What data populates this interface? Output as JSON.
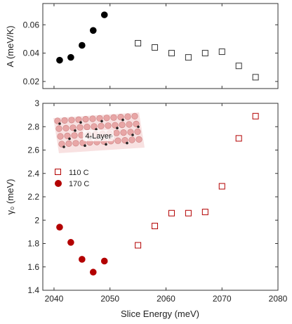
{
  "colors": {
    "black_series": "#000000",
    "open_series": "#333333",
    "red_filled": "#b30000",
    "red_open": "#b30000",
    "inset_atoms": "#e8a6a6"
  },
  "chart_data": [
    {
      "type": "scatter",
      "panel": "top",
      "xlim": [
        2038,
        2080
      ],
      "ylim": [
        0.015,
        0.075
      ],
      "xlabel": "",
      "ylabel": "A (meV/K)",
      "yticks": [
        0.02,
        0.04,
        0.06
      ],
      "ytick_labels": [
        "0.02",
        "0.04",
        "0.06"
      ],
      "xticks": [
        2040,
        2050,
        2060,
        2070,
        2080
      ],
      "series": [
        {
          "marker": "filled-circle",
          "color": "#000000",
          "x": [
            2041,
            2043,
            2045,
            2047,
            2049
          ],
          "y": [
            0.035,
            0.037,
            0.0455,
            0.056,
            0.067
          ]
        },
        {
          "marker": "open-square",
          "color": "#333333",
          "x": [
            2055,
            2058,
            2061,
            2064,
            2067,
            2070,
            2073,
            2076
          ],
          "y": [
            0.047,
            0.044,
            0.04,
            0.037,
            0.04,
            0.041,
            0.031,
            0.023
          ]
        }
      ]
    },
    {
      "type": "scatter",
      "panel": "bottom",
      "xlim": [
        2038,
        2080
      ],
      "ylim": [
        1.4,
        3.0
      ],
      "xlabel": "Slice Energy (meV)",
      "ylabel": "γ₀ (meV)",
      "yticks": [
        1.4,
        1.6,
        1.8,
        2.0,
        2.2,
        2.4,
        2.6,
        2.8,
        3.0
      ],
      "ytick_labels": [
        "1.4",
        "1.6",
        "1.8",
        "2",
        "2.2",
        "2.4",
        "2.6",
        "2.8",
        "3"
      ],
      "xticks": [
        2040,
        2050,
        2060,
        2070,
        2080
      ],
      "xtick_labels": [
        "2040",
        "2050",
        "2060",
        "2070",
        "2080"
      ],
      "legend": {
        "position": "left-middle",
        "entries": [
          "110 C",
          "170 C"
        ]
      },
      "inset_label": "4-Layer",
      "series": [
        {
          "name": "110 C",
          "marker": "open-square",
          "color": "#b30000",
          "x": [
            2055,
            2058,
            2061,
            2064,
            2067,
            2070,
            2073,
            2076
          ],
          "y": [
            1.785,
            1.95,
            2.06,
            2.06,
            2.07,
            2.29,
            2.7,
            2.89
          ]
        },
        {
          "name": "170 C",
          "marker": "filled-circle",
          "color": "#b30000",
          "x": [
            2041,
            2043,
            2045,
            2047,
            2049
          ],
          "y": [
            1.94,
            1.81,
            1.665,
            1.555,
            1.65
          ]
        }
      ]
    }
  ]
}
